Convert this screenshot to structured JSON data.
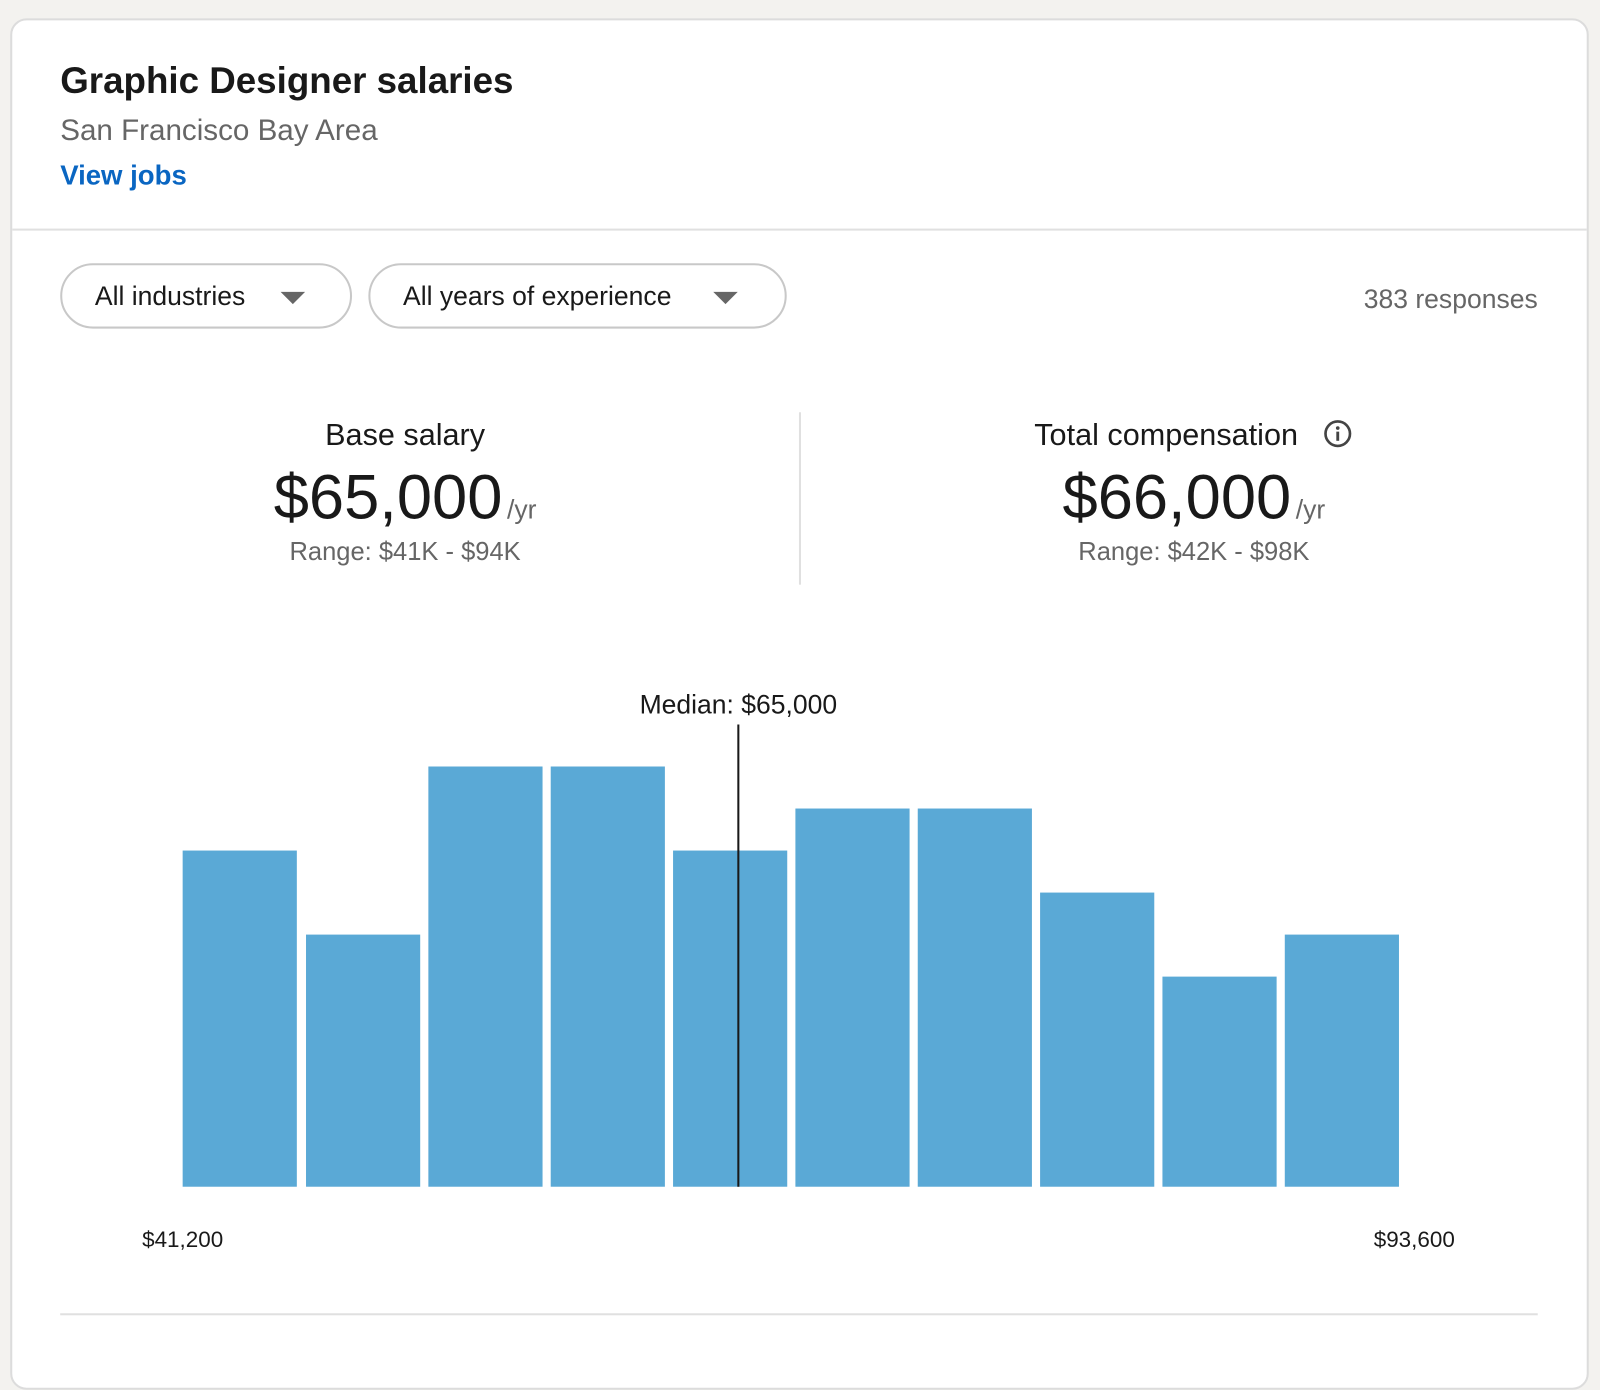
{
  "header": {
    "title": "Graphic Designer salaries",
    "subtitle": "San Francisco Bay Area",
    "link": "View jobs"
  },
  "filters": [
    "All industries",
    "All years of experience"
  ],
  "responses": "383 responses",
  "stats": [
    {
      "label": "Base salary",
      "value": "$65,000",
      "unit": "/yr",
      "range": "Range: $41K - $94K"
    },
    {
      "label": "Total compensation",
      "value": "$66,000",
      "unit": "/yr",
      "range": "Range: $42K - $98K"
    }
  ],
  "chart_data": {
    "type": "histogram",
    "bins": [
      41200,
      46440,
      51680,
      56920,
      62160,
      67400,
      72640,
      77880,
      83120,
      88360,
      93600
    ],
    "values": [
      8,
      6,
      10,
      10,
      8,
      9,
      9,
      7,
      5,
      6
    ],
    "color": "#5aa9d6",
    "xlim": [
      41200,
      93600
    ],
    "xticks": [
      {
        "value": 41200,
        "label": "$41,200"
      },
      {
        "value": 93600,
        "label": "$93,600"
      }
    ],
    "ylim": [
      0,
      11
    ],
    "annotations": [
      {
        "label": "Median: $65,000",
        "value": 65000
      }
    ]
  }
}
